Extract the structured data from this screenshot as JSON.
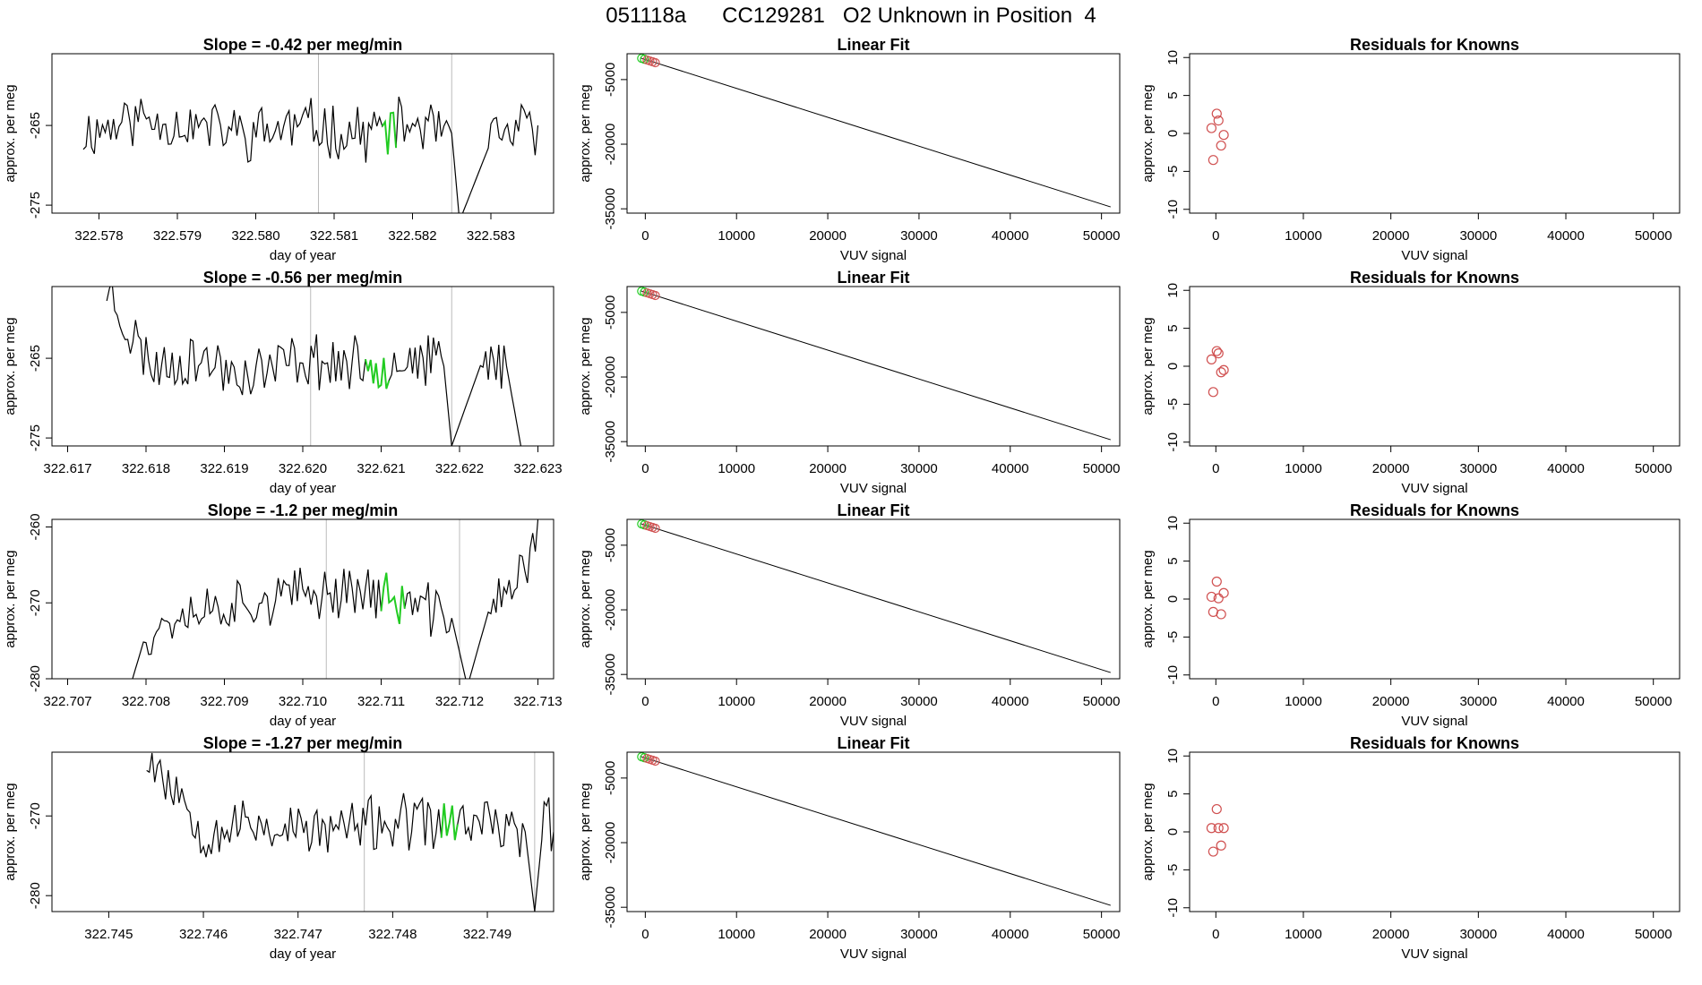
{
  "title": "051118a      CC129281   O2 Unknown in Position  4",
  "colors": {
    "trace": "#000000",
    "highlight": "#22cc22",
    "points": "#d05050",
    "divider": "#bbbbbb",
    "frame": "#000000"
  },
  "chart_data": [
    {
      "type": "line",
      "panel": "timeseries-1",
      "title": "Slope =  -0.42  per meg/min",
      "xlabel": "day of year",
      "ylabel": "approx. per meg",
      "xlim": [
        322.5774,
        322.5838
      ],
      "ylim": [
        -276,
        -256
      ],
      "xticks": [
        "322.578",
        "322.579",
        "322.580",
        "322.581",
        "322.582",
        "322.583"
      ],
      "yticks": [
        "-265",
        "-275"
      ],
      "vlines": [
        322.5808,
        322.5825
      ],
      "highlight_x": [
        322.5816,
        322.5818
      ],
      "seed": 11,
      "trace": [
        [
          322.5778,
          -266
        ],
        [
          322.5785,
          -264
        ],
        [
          322.5792,
          -265
        ],
        [
          322.5799,
          -266
        ],
        [
          322.5806,
          -265
        ],
        [
          322.5813,
          -266
        ],
        [
          322.582,
          -265
        ],
        [
          322.5825,
          -266
        ],
        [
          322.5826,
          -277
        ],
        [
          322.583,
          -267
        ],
        [
          322.5836,
          -265
        ]
      ]
    },
    {
      "type": "scatter_line",
      "panel": "fit-1",
      "title": "Linear Fit",
      "xlabel": "VUV signal",
      "ylabel": "approx. per meg",
      "xlim": [
        -2000,
        52000
      ],
      "ylim": [
        -36000,
        1000
      ],
      "xticks": [
        "0",
        "10000",
        "20000",
        "30000",
        "40000",
        "50000"
      ],
      "yticks": [
        "-5000",
        "-20000",
        "-35000"
      ],
      "line": [
        [
          -500,
          -1
        ],
        [
          51000,
          -34560
        ]
      ],
      "points_x": [
        -400,
        -100,
        200,
        500,
        800,
        1100
      ]
    },
    {
      "type": "scatter",
      "panel": "residuals-1",
      "title": "Residuals for Knowns",
      "xlabel": "VUV signal",
      "ylabel": "approx. per meg",
      "xlim": [
        -3000,
        53000
      ],
      "ylim": [
        -10.5,
        10.5
      ],
      "xticks": [
        "0",
        "10000",
        "20000",
        "30000",
        "40000",
        "50000"
      ],
      "yticks": [
        "10",
        "5",
        "0",
        "-5",
        "-10"
      ],
      "points": [
        [
          -500,
          0.7
        ],
        [
          -300,
          -3.5
        ],
        [
          100,
          2.6
        ],
        [
          300,
          1.7
        ],
        [
          600,
          -1.6
        ],
        [
          900,
          -0.2
        ]
      ]
    },
    {
      "type": "line",
      "panel": "timeseries-2",
      "title": "Slope =  -0.56  per meg/min",
      "xlabel": "day of year",
      "ylabel": "approx. per meg",
      "xlim": [
        322.6168,
        322.6232
      ],
      "ylim": [
        -276,
        -256
      ],
      "xticks": [
        "322.617",
        "322.618",
        "322.619",
        "322.620",
        "322.621",
        "322.622",
        "322.623"
      ],
      "yticks": [
        "-265",
        "-275"
      ],
      "vlines": [
        322.6201,
        322.6219
      ],
      "highlight_x": [
        322.6208,
        322.6211
      ],
      "seed": 23,
      "trace": [
        [
          322.6175,
          -256
        ],
        [
          322.6178,
          -262
        ],
        [
          322.6181,
          -266
        ],
        [
          322.6186,
          -265
        ],
        [
          322.6193,
          -267
        ],
        [
          322.62,
          -265
        ],
        [
          322.6207,
          -266
        ],
        [
          322.6213,
          -265
        ],
        [
          322.6218,
          -266
        ],
        [
          322.6219,
          -276
        ],
        [
          322.6223,
          -265
        ],
        [
          322.6226,
          -266
        ],
        [
          322.6228,
          -277
        ]
      ]
    },
    {
      "type": "scatter_line",
      "panel": "fit-2",
      "title": "Linear Fit",
      "xlabel": "VUV signal",
      "ylabel": "approx. per meg",
      "xlim": [
        -2000,
        52000
      ],
      "ylim": [
        -36000,
        1000
      ],
      "xticks": [
        "0",
        "10000",
        "20000",
        "30000",
        "40000",
        "50000"
      ],
      "yticks": [
        "-5000",
        "-20000",
        "-35000"
      ],
      "line": [
        [
          -500,
          -1
        ],
        [
          51000,
          -34560
        ]
      ],
      "points_x": [
        -400,
        -100,
        200,
        500,
        800,
        1100
      ]
    },
    {
      "type": "scatter",
      "panel": "residuals-2",
      "title": "Residuals for Knowns",
      "xlabel": "VUV signal",
      "ylabel": "approx. per meg",
      "xlim": [
        -3000,
        53000
      ],
      "ylim": [
        -10.5,
        10.5
      ],
      "xticks": [
        "0",
        "10000",
        "20000",
        "30000",
        "40000",
        "50000"
      ],
      "yticks": [
        "10",
        "5",
        "0",
        "-5",
        "-10"
      ],
      "points": [
        [
          -500,
          0.9
        ],
        [
          -300,
          -3.4
        ],
        [
          100,
          2.0
        ],
        [
          300,
          1.7
        ],
        [
          600,
          -0.8
        ],
        [
          900,
          -0.5
        ]
      ]
    },
    {
      "type": "line",
      "panel": "timeseries-3",
      "title": "Slope =  -1.2  per meg/min",
      "xlabel": "day of year",
      "ylabel": "approx. per meg",
      "xlim": [
        322.7068,
        322.7132
      ],
      "ylim": [
        -280,
        -259
      ],
      "xticks": [
        "322.707",
        "322.708",
        "322.709",
        "322.710",
        "322.711",
        "322.712",
        "322.713"
      ],
      "yticks": [
        "-260",
        "-270",
        "-280"
      ],
      "vlines": [
        322.7103,
        322.712
      ],
      "highlight_x": [
        322.711,
        322.7113
      ],
      "seed": 37,
      "trace": [
        [
          322.7078,
          -281
        ],
        [
          322.708,
          -274
        ],
        [
          322.7085,
          -271
        ],
        [
          322.7092,
          -270
        ],
        [
          322.71,
          -269
        ],
        [
          322.7107,
          -268
        ],
        [
          322.7113,
          -270
        ],
        [
          322.7119,
          -272
        ],
        [
          322.7121,
          -281
        ],
        [
          322.7124,
          -270
        ],
        [
          322.7127,
          -268
        ],
        [
          322.7129,
          -264
        ],
        [
          322.713,
          -259
        ]
      ]
    },
    {
      "type": "scatter_line",
      "panel": "fit-3",
      "title": "Linear Fit",
      "xlabel": "VUV signal",
      "ylabel": "approx. per meg",
      "xlim": [
        -2000,
        52000
      ],
      "ylim": [
        -36000,
        1000
      ],
      "xticks": [
        "0",
        "10000",
        "20000",
        "30000",
        "40000",
        "50000"
      ],
      "yticks": [
        "-5000",
        "-20000",
        "-35000"
      ],
      "line": [
        [
          -500,
          -1
        ],
        [
          51000,
          -34560
        ]
      ],
      "points_x": [
        -400,
        -100,
        200,
        500,
        800,
        1100
      ]
    },
    {
      "type": "scatter",
      "panel": "residuals-3",
      "title": "Residuals for Knowns",
      "xlabel": "VUV signal",
      "ylabel": "approx. per meg",
      "xlim": [
        -3000,
        53000
      ],
      "ylim": [
        -10.5,
        10.5
      ],
      "xticks": [
        "0",
        "10000",
        "20000",
        "30000",
        "40000",
        "50000"
      ],
      "yticks": [
        "10",
        "5",
        "0",
        "-5",
        "-10"
      ],
      "points": [
        [
          -500,
          0.3
        ],
        [
          -300,
          -1.7
        ],
        [
          100,
          2.3
        ],
        [
          300,
          0.1
        ],
        [
          600,
          -2.0
        ],
        [
          900,
          0.8
        ]
      ]
    },
    {
      "type": "line",
      "panel": "timeseries-4",
      "title": "Slope =  -1.27  per meg/min",
      "xlabel": "day of year",
      "ylabel": "approx. per meg",
      "xlim": [
        322.7444,
        322.7497
      ],
      "ylim": [
        -282,
        -262
      ],
      "xticks": [
        "322.745",
        "322.746",
        "322.747",
        "322.748",
        "322.749"
      ],
      "yticks": [
        "-270",
        "-280"
      ],
      "vlines": [
        322.7477,
        322.7495
      ],
      "highlight_x": [
        322.7485,
        322.7487
      ],
      "seed": 53,
      "trace": [
        [
          322.7454,
          -262
        ],
        [
          322.7456,
          -265
        ],
        [
          322.7458,
          -268
        ],
        [
          322.746,
          -272
        ],
        [
          322.7465,
          -271
        ],
        [
          322.7472,
          -272
        ],
        [
          322.7478,
          -271
        ],
        [
          322.7484,
          -271
        ],
        [
          322.749,
          -271
        ],
        [
          322.7494,
          -272
        ],
        [
          322.7495,
          -282
        ],
        [
          322.7496,
          -270
        ],
        [
          322.7497,
          -272
        ]
      ]
    },
    {
      "type": "scatter_line",
      "panel": "fit-4",
      "title": "Linear Fit",
      "xlabel": "VUV signal",
      "ylabel": "approx. per meg",
      "xlim": [
        -2000,
        52000
      ],
      "ylim": [
        -36000,
        1000
      ],
      "xticks": [
        "0",
        "10000",
        "20000",
        "30000",
        "40000",
        "50000"
      ],
      "yticks": [
        "-5000",
        "-20000",
        "-35000"
      ],
      "line": [
        [
          -500,
          -1
        ],
        [
          51000,
          -34560
        ]
      ],
      "points_x": [
        -400,
        -100,
        200,
        500,
        800,
        1100
      ]
    },
    {
      "type": "scatter",
      "panel": "residuals-4",
      "title": "Residuals for Knowns",
      "xlabel": "VUV signal",
      "ylabel": "approx. per meg",
      "xlim": [
        -3000,
        53000
      ],
      "ylim": [
        -10.5,
        10.5
      ],
      "xticks": [
        "0",
        "10000",
        "20000",
        "30000",
        "40000",
        "50000"
      ],
      "yticks": [
        "10",
        "5",
        "0",
        "-5",
        "-10"
      ],
      "points": [
        [
          -500,
          0.5
        ],
        [
          -300,
          -2.6
        ],
        [
          100,
          3.0
        ],
        [
          300,
          0.5
        ],
        [
          600,
          -1.8
        ],
        [
          900,
          0.5
        ]
      ]
    }
  ]
}
